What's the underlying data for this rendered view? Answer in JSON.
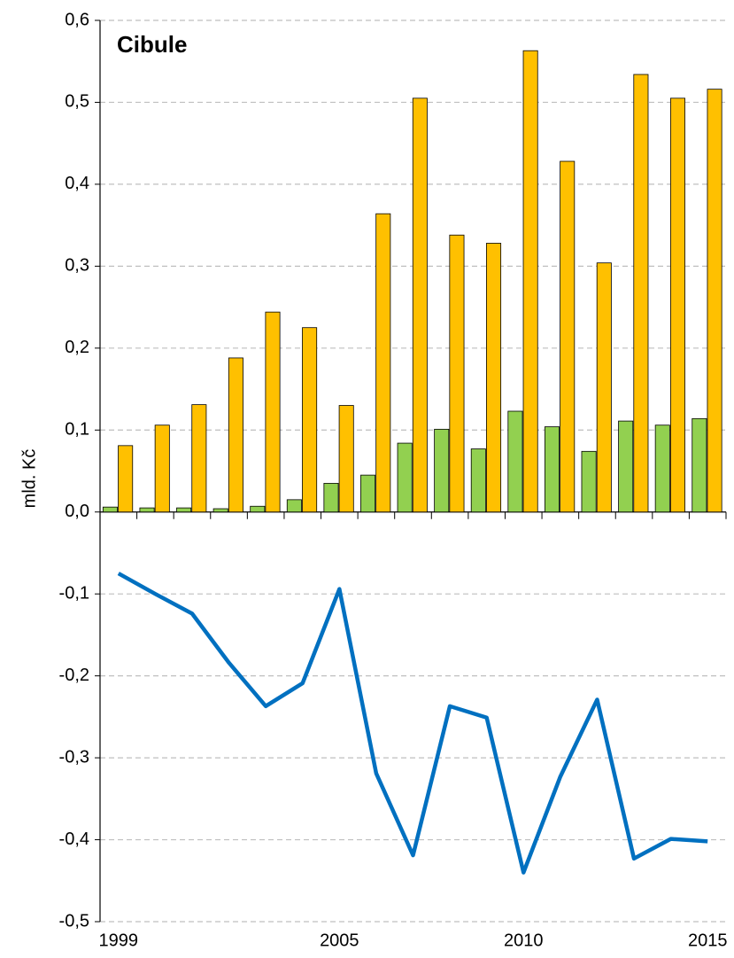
{
  "chart_data": {
    "type": "bar-line",
    "title": "Cibule",
    "y_label": "mld. Kč",
    "categories": [
      "1999",
      null,
      null,
      null,
      null,
      null,
      "2005",
      null,
      null,
      null,
      null,
      "2010",
      null,
      null,
      null,
      null,
      "2015"
    ],
    "series": [
      {
        "type": "bar",
        "color": "#92d050",
        "values": [
          0.006,
          0.005,
          0.005,
          0.004,
          0.007,
          0.015,
          0.035,
          0.045,
          0.084,
          0.101,
          0.077,
          0.123,
          0.104,
          0.074,
          0.111,
          0.106,
          0.114
        ]
      },
      {
        "type": "bar",
        "color": "#ffc000",
        "values": [
          0.081,
          0.106,
          0.131,
          0.188,
          0.244,
          0.225,
          0.13,
          0.364,
          0.505,
          0.338,
          0.328,
          0.563,
          0.428,
          0.304,
          0.534,
          0.505,
          0.516
        ]
      },
      {
        "type": "line",
        "color": "#0070c0",
        "values": [
          -0.075,
          -0.1,
          -0.124,
          -0.184,
          -0.237,
          -0.209,
          -0.094,
          -0.319,
          -0.419,
          -0.237,
          -0.251,
          -0.44,
          -0.323,
          -0.229,
          -0.423,
          -0.399,
          -0.402
        ]
      }
    ],
    "ylim": [
      -0.5,
      0.6
    ],
    "yticks": [
      {
        "value": -0.5,
        "label": "-0,5"
      },
      {
        "value": -0.4,
        "label": "-0,4"
      },
      {
        "value": -0.3,
        "label": "-0,3"
      },
      {
        "value": -0.2,
        "label": "-0,2"
      },
      {
        "value": -0.1,
        "label": "-0,1"
      },
      {
        "value": 0,
        "label": "0,0"
      },
      {
        "value": 0.1,
        "label": "0,1"
      },
      {
        "value": 0.2,
        "label": "0,2"
      },
      {
        "value": 0.3,
        "label": "0,3"
      },
      {
        "value": 0.4,
        "label": "0,4"
      },
      {
        "value": 0.5,
        "label": "0,5"
      },
      {
        "value": 0.6,
        "label": "0,6"
      }
    ],
    "grid": true,
    "title_color": "#0070c0"
  }
}
